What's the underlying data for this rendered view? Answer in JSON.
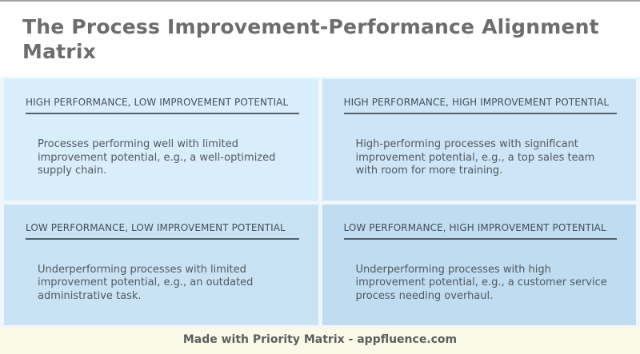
{
  "page": {
    "title": "The Process Improvement-Performance Alignment\nMatrix"
  },
  "quadrants": [
    {
      "label": "HIGH PERFORMANCE, LOW IMPROVEMENT POTENTIAL",
      "description": "Processes performing well with limited\nimprovement potential, e.g., a well-optimized\nsupply chain.",
      "bg": "#d8eefa"
    },
    {
      "label": "HIGH PERFORMANCE, HIGH IMPROVEMENT POTENTIAL",
      "description": "High-performing processes with significant\nimprovement potential, e.g., a top sales team\nwith room for more training.",
      "bg": "#cde5f6"
    },
    {
      "label": "LOW PERFORMANCE, LOW IMPROVEMENT POTENTIAL",
      "description": "Underperforming processes with limited\nimprovement potential, e.g., an outdated\nadministrative task.",
      "bg": "#c9e3f4"
    },
    {
      "label": "LOW PERFORMANCE, HIGH IMPROVEMENT POTENTIAL",
      "description": "Underperforming processes with high\nimprovement potential, e.g., a customer service\nprocess needing overhaul.",
      "bg": "#bfdcf0"
    }
  ],
  "footer": {
    "text": "Made with Priority Matrix - appfluence.com"
  },
  "colors": {
    "top_border": "#a2a2a2",
    "title_text": "#6d6d6d",
    "header_text": "#44505a",
    "rule": "#52616c",
    "body_text": "#53595f",
    "gap": "#f0f7fc",
    "footer_bg": "#fafae9",
    "footer_text": "#5e5e5e"
  }
}
